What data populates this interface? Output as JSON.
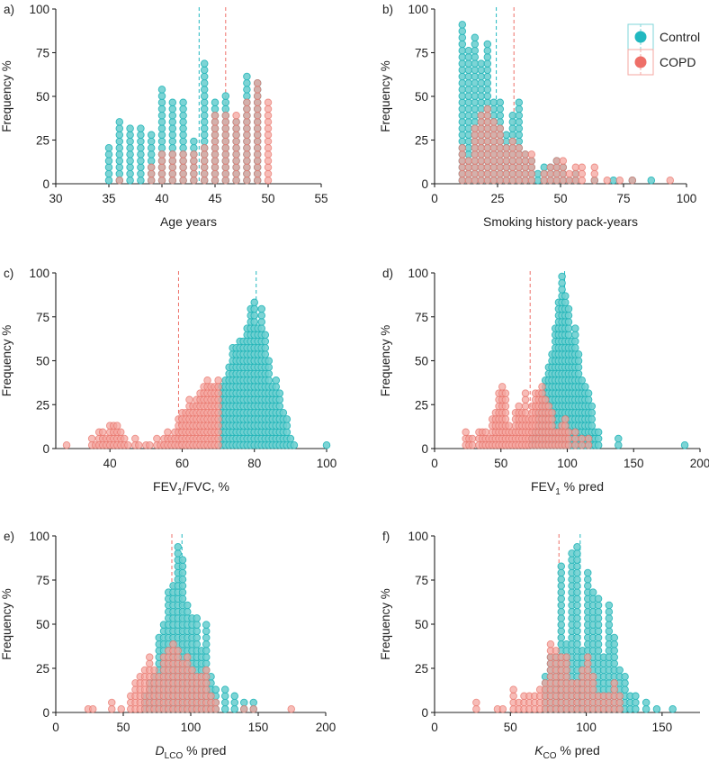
{
  "colors": {
    "control_fill": "#6fcfd0",
    "control_stroke": "#21b5b8",
    "copd_fill": "#f4a29b",
    "copd_stroke": "#e8736a",
    "legend_control": "#21b8c0",
    "legend_copd": "#ee6f68",
    "axis": "#222222"
  },
  "legend": {
    "items": [
      {
        "label": "Control",
        "color": "#21b8c0"
      },
      {
        "label": "COPD",
        "color": "#ee6f68"
      }
    ]
  },
  "chart_data": [
    {
      "type": "scatter",
      "panel": "a)",
      "xlabel": "Age years",
      "ylabel": "Frequency %",
      "xlim": [
        30,
        55
      ],
      "xticks": [
        30,
        35,
        40,
        45,
        50,
        55
      ],
      "ylim": [
        0,
        100
      ],
      "yticks": [
        0,
        25,
        50,
        75,
        100
      ],
      "bin_width": 1,
      "mean_control": 43.5,
      "mean_copd": 46,
      "series": [
        {
          "name": "Control",
          "bins": [
            35,
            36,
            37,
            38,
            39,
            40,
            41,
            42,
            43,
            44,
            45,
            46,
            47,
            48,
            49,
            50
          ],
          "values": [
            21,
            35,
            32,
            32,
            28,
            53,
            45,
            46,
            25,
            67,
            45,
            49,
            37,
            63,
            56,
            0
          ]
        },
        {
          "name": "COPD",
          "bins": [
            35,
            36,
            37,
            38,
            39,
            40,
            41,
            42,
            43,
            44,
            45,
            46,
            47,
            48,
            49,
            50
          ],
          "values": [
            0,
            3,
            0,
            0,
            10,
            15,
            18,
            18,
            15,
            20,
            38,
            38,
            38,
            45,
            56,
            46
          ]
        }
      ]
    },
    {
      "type": "scatter",
      "panel": "b)",
      "xlabel": "Smoking history pack-years",
      "ylabel": "Frequency %",
      "xlim": [
        0,
        100
      ],
      "xticks": [
        0,
        25,
        50,
        75,
        100
      ],
      "ylim": [
        0,
        100
      ],
      "yticks": [
        0,
        25,
        50,
        75,
        100
      ],
      "bin_width": 2.5,
      "mean_control": 24.5,
      "mean_copd": 31.5,
      "series": [
        {
          "name": "Control",
          "bins": [
            11,
            13.5,
            16,
            18.5,
            21,
            23.5,
            26,
            28.5,
            31,
            33.5,
            36,
            38.5,
            41,
            43.5,
            46,
            48.5,
            51,
            53.5,
            56,
            63.5,
            71,
            78.5,
            86
          ],
          "values": [
            92,
            75,
            84,
            70,
            80,
            48,
            48,
            28,
            38,
            45,
            18,
            12,
            6,
            10,
            10,
            13,
            10,
            3,
            6,
            3,
            2,
            2,
            2
          ]
        },
        {
          "name": "COPD",
          "bins": [
            11,
            13.5,
            16,
            18.5,
            21,
            23.5,
            26,
            28.5,
            31,
            33.5,
            36,
            38.5,
            43.5,
            46,
            48.5,
            51,
            53.5,
            56,
            58.5,
            63.5,
            68.5,
            73.5,
            78.5,
            93.5
          ],
          "values": [
            22,
            12,
            30,
            40,
            42,
            35,
            30,
            22,
            25,
            22,
            18,
            18,
            5,
            10,
            12,
            14,
            5,
            10,
            10,
            10,
            2,
            2,
            2,
            2
          ]
        }
      ]
    },
    {
      "type": "scatter",
      "panel": "c)",
      "xlabel": "FEV1/FVC, %",
      "xlabel_main": "FEV",
      "xlabel_sub": "1",
      "xlabel_rest": "/FVC, %",
      "ylabel": "Frequency %",
      "xlim": [
        25,
        100
      ],
      "xticks": [
        40,
        60,
        80,
        100
      ],
      "ylim": [
        0,
        100
      ],
      "yticks": [
        0,
        25,
        50,
        75,
        100
      ],
      "bin_width": 1,
      "mean_control": 80.5,
      "mean_copd": 59,
      "series": [
        {
          "name": "Control",
          "bins": [
            71,
            72,
            73,
            74,
            75,
            76,
            77,
            78,
            79,
            80,
            81,
            82,
            83,
            84,
            85,
            86,
            87,
            88,
            89,
            90,
            91,
            92,
            93,
            94,
            95,
            96,
            97,
            98,
            99,
            100
          ],
          "values": [
            35,
            40,
            48,
            58,
            58,
            60,
            60,
            68,
            78,
            85,
            70,
            78,
            65,
            50,
            35,
            40,
            30,
            22,
            15,
            5,
            3,
            0,
            0,
            0,
            0,
            0,
            0,
            0,
            0,
            2
          ]
        },
        {
          "name": "COPD",
          "bins": [
            28,
            35,
            36,
            37,
            38,
            39,
            40,
            41,
            42,
            43,
            44,
            45,
            47,
            48,
            50,
            51,
            53,
            54,
            55,
            56,
            57,
            58,
            59,
            60,
            61,
            62,
            63,
            64,
            65,
            66,
            67,
            68,
            69,
            70
          ],
          "values": [
            2,
            5,
            3,
            8,
            10,
            5,
            12,
            12,
            12,
            8,
            5,
            3,
            5,
            2,
            2,
            3,
            5,
            2,
            5,
            8,
            5,
            10,
            15,
            20,
            22,
            26,
            25,
            28,
            30,
            35,
            38,
            35,
            36,
            38
          ]
        }
      ]
    },
    {
      "type": "scatter",
      "panel": "d)",
      "xlabel": "FEV1 % pred",
      "xlabel_main": "FEV",
      "xlabel_sub": "1",
      "xlabel_rest": " % pred",
      "ylabel": "Frequency %",
      "xlim": [
        0,
        200
      ],
      "xticks": [
        0,
        50,
        100,
        150,
        200
      ],
      "ylim": [
        0,
        100
      ],
      "yticks": [
        0,
        25,
        50,
        75,
        100
      ],
      "bin_width": 2.5,
      "mean_control": 98,
      "mean_copd": 72,
      "series": [
        {
          "name": "Control",
          "bins": [
            73.5,
            76,
            78.5,
            81,
            83.5,
            86,
            88.5,
            91,
            93.5,
            96,
            98.5,
            101,
            103.5,
            106,
            108.5,
            111,
            113.5,
            116,
            118.5,
            121,
            123.5,
            138.5,
            188.5
          ],
          "values": [
            5,
            10,
            22,
            33,
            40,
            48,
            55,
            70,
            85,
            97,
            88,
            80,
            60,
            70,
            55,
            40,
            35,
            30,
            25,
            10,
            8,
            5,
            2
          ]
        },
        {
          "name": "COPD",
          "bins": [
            23.5,
            26,
            28.5,
            33.5,
            36,
            38.5,
            41,
            43.5,
            46,
            48.5,
            51,
            53.5,
            56,
            58.5,
            61,
            63.5,
            66,
            68.5,
            71,
            73.5,
            76,
            78.5,
            81,
            83.5,
            86,
            88.5,
            91,
            93.5,
            96,
            98.5,
            101,
            106,
            111,
            116
          ],
          "values": [
            10,
            5,
            5,
            10,
            10,
            10,
            5,
            15,
            20,
            30,
            35,
            32,
            12,
            10,
            22,
            25,
            20,
            30,
            15,
            25,
            30,
            33,
            35,
            28,
            25,
            20,
            10,
            8,
            12,
            15,
            10,
            10,
            5,
            5
          ]
        }
      ]
    },
    {
      "type": "scatter",
      "panel": "e)",
      "xlabel": "DLCO % pred",
      "xlabel_main": "D",
      "xlabel_sub": "LCO",
      "xlabel_rest": " % pred",
      "ylabel": "Frequency %",
      "xlim": [
        0,
        200
      ],
      "xticks": [
        0,
        50,
        100,
        150,
        200
      ],
      "ylim": [
        0,
        100
      ],
      "yticks": [
        0,
        25,
        50,
        75,
        100
      ],
      "bin_width": 3.5,
      "mean_control": 93.5,
      "mean_copd": 86,
      "series": [
        {
          "name": "Control",
          "bins": [
            66,
            69.5,
            73,
            76.5,
            80,
            83.5,
            87,
            90.5,
            94,
            97.5,
            101,
            104.5,
            108,
            111.5,
            115,
            118.5,
            125.5,
            132.5,
            139.5,
            146.5
          ],
          "values": [
            10,
            15,
            22,
            42,
            48,
            68,
            73,
            93,
            85,
            60,
            55,
            55,
            35,
            50,
            20,
            12,
            12,
            10,
            5,
            5
          ]
        },
        {
          "name": "COPD",
          "bins": [
            24,
            27.5,
            41.5,
            48.5,
            55.5,
            59,
            62.5,
            66,
            69.5,
            73,
            76.5,
            80,
            83.5,
            87,
            90.5,
            94,
            97.5,
            101,
            104.5,
            108,
            111.5,
            115,
            118.5,
            139.5,
            146.5,
            174.5
          ],
          "values": [
            2,
            2,
            5,
            2,
            10,
            15,
            20,
            25,
            30,
            25,
            20,
            30,
            35,
            40,
            35,
            28,
            30,
            25,
            20,
            20,
            25,
            10,
            5,
            2,
            2,
            2
          ]
        }
      ]
    },
    {
      "type": "scatter",
      "panel": "f)",
      "xlabel": "KCO % pred",
      "xlabel_main": "K",
      "xlabel_sub": "CO",
      "xlabel_rest": " % pred",
      "ylabel": "Frequency %",
      "xlim": [
        0,
        175
      ],
      "xticks": [
        0,
        50,
        100,
        150
      ],
      "ylim": [
        0,
        100
      ],
      "yticks": [
        0,
        25,
        50,
        75,
        100
      ],
      "bin_width": 3.5,
      "mean_control": 96,
      "mean_copd": 82,
      "series": [
        {
          "name": "Control",
          "bins": [
            73,
            76.5,
            80,
            83.5,
            87,
            90.5,
            94,
            97.5,
            101,
            104.5,
            108,
            111.5,
            115,
            118.5,
            122,
            125.5,
            129,
            132.5,
            139.5,
            146.5,
            157
          ],
          "values": [
            20,
            32,
            33,
            84,
            40,
            90,
            95,
            35,
            78,
            68,
            65,
            30,
            60,
            43,
            25,
            20,
            10,
            10,
            5,
            2,
            2
          ]
        },
        {
          "name": "COPD",
          "bins": [
            27.5,
            41.5,
            45,
            52,
            55.5,
            59,
            62.5,
            66,
            69.5,
            73,
            76.5,
            80,
            83.5,
            87,
            90.5,
            94,
            97.5,
            101,
            104.5,
            108,
            111.5,
            115,
            118.5,
            122
          ],
          "values": [
            5,
            2,
            2,
            12,
            5,
            8,
            10,
            10,
            12,
            15,
            37,
            35,
            33,
            30,
            15,
            15,
            25,
            30,
            20,
            10,
            10,
            10,
            15,
            10
          ]
        }
      ]
    }
  ]
}
